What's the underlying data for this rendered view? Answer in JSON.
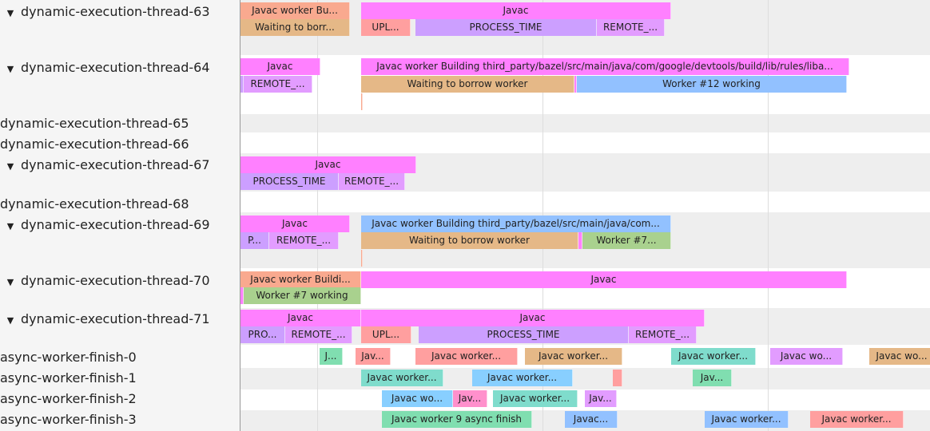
{
  "colors": {
    "pink": "#ff80ff",
    "salmon": "#f9a98f",
    "tan": "#e5b887",
    "red": "#ff9f9f",
    "purple": "#cc9fff",
    "violet": "#e29cff",
    "blue": "#92c1ff",
    "sky": "#88cfff",
    "green": "#a9d18e",
    "mint": "#80deb0",
    "teal": "#7fdccc",
    "rose": "#ff90cc"
  },
  "tracks": [
    {
      "label": "dynamic-execution-thread-63",
      "expanded": true
    },
    {
      "label": "dynamic-execution-thread-64",
      "expanded": true
    },
    {
      "label": "dynamic-execution-thread-65",
      "expanded": false
    },
    {
      "label": "dynamic-execution-thread-66",
      "expanded": false
    },
    {
      "label": "dynamic-execution-thread-67",
      "expanded": true
    },
    {
      "label": "dynamic-execution-thread-68",
      "expanded": false
    },
    {
      "label": "dynamic-execution-thread-69",
      "expanded": true
    },
    {
      "label": "dynamic-execution-thread-70",
      "expanded": true
    },
    {
      "label": "dynamic-execution-thread-71",
      "expanded": true
    },
    {
      "label": "async-worker-finish-0",
      "expanded": false
    },
    {
      "label": "async-worker-finish-1",
      "expanded": false
    },
    {
      "label": "async-worker-finish-2",
      "expanded": false
    },
    {
      "label": "async-worker-finish-3",
      "expanded": false
    }
  ],
  "expand_glyph": "▼",
  "slices": [
    {
      "label": "Javac worker Bu...",
      "color": "salmon"
    },
    {
      "label": "Javac",
      "color": "pink"
    },
    {
      "label": "Waiting to borr...",
      "color": "tan"
    },
    {
      "label": "UPL...",
      "color": "red"
    },
    {
      "label": "PROCESS_TIME",
      "color": "purple"
    },
    {
      "label": "REMOTE_...",
      "color": "violet"
    },
    {
      "label": "Javac",
      "color": "pink"
    },
    {
      "label": "Javac worker Building third_party/bazel/src/main/java/com/google/devtools/build/lib/rules/liba...",
      "color": "pink"
    },
    {
      "label": "",
      "color": "purple"
    },
    {
      "label": "REMOTE_...",
      "color": "violet"
    },
    {
      "label": "Waiting to borrow worker",
      "color": "tan"
    },
    {
      "label": "",
      "color": "pink"
    },
    {
      "label": "Worker #12 working",
      "color": "blue"
    },
    {
      "label": "",
      "color": "salmon"
    },
    {
      "label": "Javac",
      "color": "pink"
    },
    {
      "label": "PROCESS_TIME",
      "color": "purple"
    },
    {
      "label": "REMOTE_...",
      "color": "violet"
    },
    {
      "label": "Javac",
      "color": "pink"
    },
    {
      "label": "Javac worker Building third_party/bazel/src/main/java/com...",
      "color": "blue"
    },
    {
      "label": "P...",
      "color": "purple"
    },
    {
      "label": "REMOTE_...",
      "color": "violet"
    },
    {
      "label": "Waiting to borrow worker",
      "color": "tan"
    },
    {
      "label": "",
      "color": "pink"
    },
    {
      "label": "Worker #7...",
      "color": "green"
    },
    {
      "label": "",
      "color": "salmon"
    },
    {
      "label": "Javac worker Buildi...",
      "color": "salmon"
    },
    {
      "label": "Javac",
      "color": "pink"
    },
    {
      "label": "",
      "color": "pink"
    },
    {
      "label": "Worker #7 working",
      "color": "green"
    },
    {
      "label": "Javac",
      "color": "pink"
    },
    {
      "label": "Javac",
      "color": "pink"
    },
    {
      "label": "PRO...",
      "color": "purple"
    },
    {
      "label": "REMOTE_...",
      "color": "violet"
    },
    {
      "label": "UPL...",
      "color": "red"
    },
    {
      "label": "PROCESS_TIME",
      "color": "purple"
    },
    {
      "label": "REMOTE_...",
      "color": "violet"
    },
    {
      "label": "J...",
      "color": "mint"
    },
    {
      "label": "Jav...",
      "color": "red"
    },
    {
      "label": "Javac worker...",
      "color": "red"
    },
    {
      "label": "Javac worker...",
      "color": "tan"
    },
    {
      "label": "Javac worker...",
      "color": "teal"
    },
    {
      "label": "Javac wo...",
      "color": "violet"
    },
    {
      "label": "Javac wo...",
      "color": "tan"
    },
    {
      "label": "Javac worker...",
      "color": "teal"
    },
    {
      "label": "Javac worker...",
      "color": "sky"
    },
    {
      "label": "",
      "color": "red"
    },
    {
      "label": "Jav...",
      "color": "mint"
    },
    {
      "label": "Javac wo...",
      "color": "sky"
    },
    {
      "label": "Jav...",
      "color": "rose"
    },
    {
      "label": "Javac worker...",
      "color": "teal"
    },
    {
      "label": "Jav...",
      "color": "violet"
    },
    {
      "label": "Javac worker 9 async finish",
      "color": "mint"
    },
    {
      "label": "Javac...",
      "color": "blue"
    },
    {
      "label": "Javac worker...",
      "color": "blue"
    },
    {
      "label": "Javac worker...",
      "color": "red"
    }
  ]
}
